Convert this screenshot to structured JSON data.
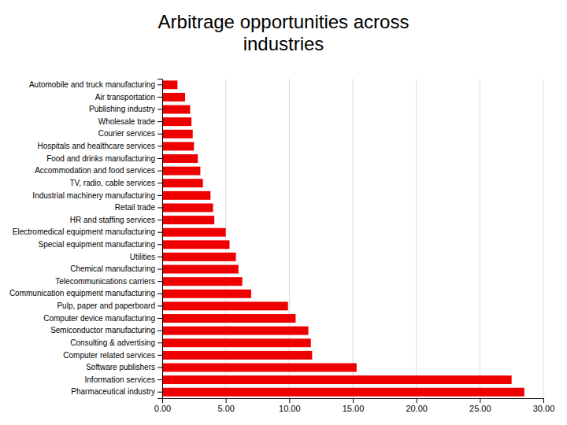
{
  "chart_data": {
    "type": "bar",
    "orientation": "horizontal",
    "title": "Arbitrage opportunities across\nindustries",
    "categories": [
      "Automobile and truck manufacturing",
      "Air transportation",
      "Publishing industry",
      "Wholesale trade",
      "Courier services",
      "Hospitals and healthcare services",
      "Food and drinks manufacturing",
      "Accommodation and food services",
      "TV, radio, cable services",
      "Industrial machinery manufacturing",
      "Retail trade",
      "HR and staffing services",
      "Electromedical equipment manufacturing",
      "Special equipment manufacturing",
      "Utilities",
      "Chemical manufacturing",
      "Telecommunications carriers",
      "Communication equipment manufacturing",
      "Pulp, paper and paperboard",
      "Computer device manufacturing",
      "Semiconductor manufacturing",
      "Consulting & advertising",
      "Computer related services",
      "Software publishers",
      "Information services",
      "Pharmaceutical industry"
    ],
    "values": [
      1.2,
      1.8,
      2.2,
      2.3,
      2.4,
      2.5,
      2.8,
      3.0,
      3.2,
      3.8,
      4.0,
      4.1,
      5.0,
      5.3,
      5.8,
      6.0,
      6.3,
      7.0,
      9.9,
      10.5,
      11.5,
      11.7,
      11.8,
      15.3,
      27.5,
      28.5
    ],
    "color": "#ee0000",
    "xlim": [
      0,
      30
    ],
    "xticks": [
      {
        "value": 0,
        "label": "0.00"
      },
      {
        "value": 5,
        "label": "5.00"
      },
      {
        "value": 10,
        "label": "10.00"
      },
      {
        "value": 15,
        "label": "15.00"
      },
      {
        "value": 20,
        "label": "20.00"
      },
      {
        "value": 25,
        "label": "25.00"
      },
      {
        "value": 30,
        "label": "30.00"
      }
    ],
    "grid": true
  }
}
